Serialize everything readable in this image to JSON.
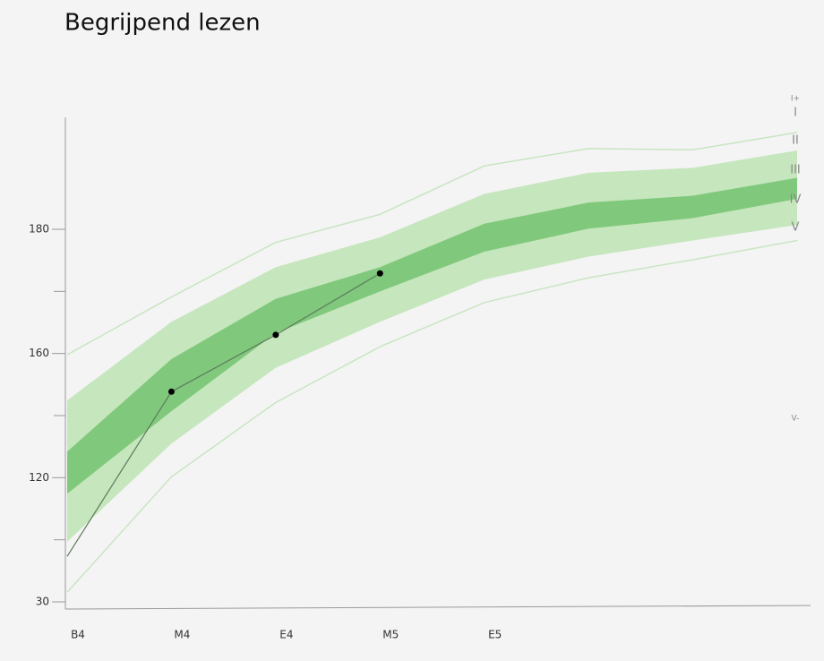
{
  "chart_data": {
    "type": "band-line",
    "title": "Begrijpend lezen",
    "categories": [
      "B4",
      "M4",
      "E4",
      "M5",
      "E5",
      null,
      null,
      null
    ],
    "yscale": "tick-spaced",
    "ylim": [
      30,
      198
    ],
    "yticks": [
      30,
      120,
      160,
      180
    ],
    "minor_yticks": [
      75,
      140,
      170
    ],
    "boundaries": [
      {
        "values": [
          159.6,
          169.1,
          177.9,
          182.4,
          190.2,
          193.0,
          192.8,
          195.6
        ]
      },
      {
        "values": [
          144.9,
          165.1,
          173.9,
          178.7,
          185.7,
          189.1,
          189.9,
          192.7
        ]
      },
      {
        "values": [
          128.4,
          158.2,
          168.8,
          173.9,
          180.9,
          184.3,
          185.4,
          188.3
        ]
      },
      {
        "values": [
          108.4,
          141.4,
          163.3,
          170.0,
          176.4,
          180.1,
          181.8,
          184.9
        ]
      },
      {
        "values": [
          73.6,
          131.0,
          155.4,
          165.1,
          171.9,
          175.6,
          178.2,
          180.7
        ]
      },
      {
        "values": [
          37.0,
          120.3,
          144.2,
          161.1,
          168.2,
          172.2,
          175.1,
          178.2
        ]
      }
    ],
    "band_colors": {
      "outer_line": "#c9e5c3",
      "light": "#c6e6bd",
      "dark": "#80c97c"
    },
    "series": [
      {
        "color": "#5b7a5b",
        "values": [
          63.0,
          147.7,
          163.0,
          172.9,
          null,
          null,
          null,
          null
        ]
      }
    ],
    "band_labels": [
      "I+",
      "I",
      "II",
      "III",
      "IV",
      "V",
      "V-"
    ]
  }
}
